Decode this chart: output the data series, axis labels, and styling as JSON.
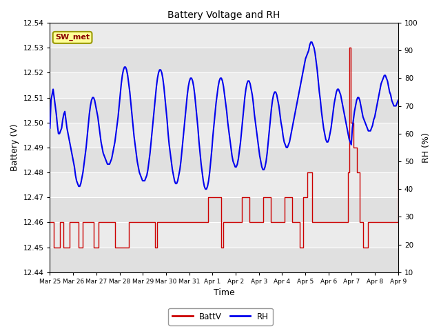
{
  "title": "Battery Voltage and RH",
  "xlabel": "Time",
  "ylabel_left": "Battery (V)",
  "ylabel_right": "RH (%)",
  "station_label": "SW_met",
  "ylim_left": [
    12.44,
    12.54
  ],
  "ylim_right": [
    10,
    100
  ],
  "yticks_left": [
    12.44,
    12.45,
    12.46,
    12.47,
    12.48,
    12.49,
    12.5,
    12.51,
    12.52,
    12.53,
    12.54
  ],
  "yticks_right": [
    10,
    20,
    30,
    40,
    50,
    60,
    70,
    80,
    90,
    100
  ],
  "xtick_labels": [
    "Mar 25",
    "Mar 26",
    "Mar 27",
    "Mar 28",
    "Mar 29",
    "Mar 30",
    "Mar 31",
    "Apr 1",
    "Apr 2",
    "Apr 3",
    "Apr 4",
    "Apr 5",
    "Apr 6",
    "Apr 7",
    "Apr 8",
    "Apr 9"
  ],
  "color_batt": "#cc0000",
  "color_rh": "#0000ee",
  "legend_batt": "BattV",
  "legend_rh": "RH",
  "batt_data": [
    12.46,
    12.46,
    12.46,
    12.45,
    12.45,
    12.45,
    12.45,
    12.45,
    12.46,
    12.46,
    12.46,
    12.45,
    12.45,
    12.45,
    12.45,
    12.45,
    12.46,
    12.46,
    12.46,
    12.46,
    12.46,
    12.46,
    12.46,
    12.45,
    12.45,
    12.45,
    12.46,
    12.46,
    12.46,
    12.46,
    12.46,
    12.46,
    12.46,
    12.46,
    12.46,
    12.45,
    12.45,
    12.45,
    12.45,
    12.46,
    12.46,
    12.46,
    12.46,
    12.46,
    12.46,
    12.46,
    12.46,
    12.46,
    12.46,
    12.46,
    12.46,
    12.46,
    12.45,
    12.45,
    12.45,
    12.45,
    12.45,
    12.45,
    12.45,
    12.45,
    12.45,
    12.45,
    12.45,
    12.46,
    12.46,
    12.46,
    12.46,
    12.46,
    12.46,
    12.46,
    12.46,
    12.46,
    12.46,
    12.46,
    12.46,
    12.46,
    12.46,
    12.46,
    12.46,
    12.46,
    12.46,
    12.46,
    12.46,
    12.46,
    12.45,
    12.45,
    12.46,
    12.46,
    12.46,
    12.46,
    12.46,
    12.46,
    12.46,
    12.46,
    12.46,
    12.46,
    12.46,
    12.46,
    12.46,
    12.46,
    12.46,
    12.46,
    12.46,
    12.46,
    12.46,
    12.46,
    12.46,
    12.46,
    12.46,
    12.46,
    12.46,
    12.46,
    12.46,
    12.46,
    12.46,
    12.46,
    12.46,
    12.46,
    12.46,
    12.46,
    12.46,
    12.46,
    12.46,
    12.46,
    12.46,
    12.46,
    12.46,
    12.47,
    12.47,
    12.47,
    12.47,
    12.47,
    12.47,
    12.47,
    12.47,
    12.47,
    12.47,
    12.45,
    12.45,
    12.46,
    12.46,
    12.46,
    12.46,
    12.46,
    12.46,
    12.46,
    12.46,
    12.46,
    12.46,
    12.46,
    12.46,
    12.46,
    12.46,
    12.46,
    12.47,
    12.47,
    12.47,
    12.47,
    12.47,
    12.47,
    12.46,
    12.46,
    12.46,
    12.46,
    12.46,
    12.46,
    12.46,
    12.46,
    12.46,
    12.46,
    12.46,
    12.47,
    12.47,
    12.47,
    12.47,
    12.47,
    12.47,
    12.46,
    12.46,
    12.46,
    12.46,
    12.46,
    12.46,
    12.46,
    12.46,
    12.46,
    12.46,
    12.46,
    12.47,
    12.47,
    12.47,
    12.47,
    12.47,
    12.47,
    12.46,
    12.46,
    12.46,
    12.46,
    12.46,
    12.46,
    12.45,
    12.45,
    12.45,
    12.47,
    12.47,
    12.47,
    12.48,
    12.48,
    12.48,
    12.48,
    12.46,
    12.46,
    12.46,
    12.46,
    12.46,
    12.46,
    12.46,
    12.46,
    12.46,
    12.46,
    12.46,
    12.46,
    12.46,
    12.46,
    12.46,
    12.46,
    12.46,
    12.46,
    12.46,
    12.46,
    12.46,
    12.46,
    12.46,
    12.46,
    12.46,
    12.46,
    12.46,
    12.46,
    12.46,
    12.48,
    12.53,
    12.5,
    12.5,
    12.49,
    12.49,
    12.49,
    12.48,
    12.48,
    12.46,
    12.46,
    12.46,
    12.45,
    12.45,
    12.45,
    12.45,
    12.46,
    12.46,
    12.46,
    12.46,
    12.46,
    12.46,
    12.46,
    12.46,
    12.46,
    12.46,
    12.46,
    12.46,
    12.46,
    12.46,
    12.46,
    12.46,
    12.46,
    12.46,
    12.46,
    12.46,
    12.46,
    12.46,
    12.46,
    12.46,
    12.48
  ],
  "rh_data": [
    62,
    72,
    74,
    76,
    73,
    70,
    67,
    63,
    60,
    60,
    61,
    62,
    65,
    67,
    68,
    65,
    62,
    60,
    58,
    56,
    54,
    52,
    50,
    48,
    45,
    43,
    42,
    41,
    41,
    42,
    44,
    46,
    49,
    52,
    55,
    59,
    63,
    67,
    70,
    72,
    73,
    73,
    72,
    70,
    68,
    66,
    63,
    60,
    57,
    55,
    53,
    52,
    51,
    50,
    49,
    49,
    49,
    50,
    51,
    53,
    55,
    57,
    60,
    63,
    66,
    70,
    74,
    78,
    81,
    83,
    84,
    84,
    83,
    81,
    78,
    75,
    71,
    67,
    63,
    59,
    56,
    53,
    50,
    48,
    46,
    45,
    44,
    43,
    43,
    43,
    44,
    45,
    47,
    50,
    53,
    57,
    61,
    65,
    69,
    73,
    77,
    80,
    82,
    83,
    83,
    82,
    80,
    77,
    73,
    69,
    65,
    60,
    56,
    53,
    50,
    47,
    45,
    43,
    42,
    42,
    43,
    45,
    47,
    50,
    54,
    58,
    62,
    66,
    70,
    74,
    77,
    79,
    80,
    80,
    79,
    77,
    74,
    70,
    66,
    62,
    57,
    53,
    49,
    46,
    43,
    41,
    40,
    40,
    41,
    43,
    46,
    50,
    54,
    59,
    63,
    67,
    71,
    74,
    77,
    79,
    80,
    80,
    79,
    77,
    74,
    71,
    68,
    64,
    61,
    58,
    55,
    52,
    50,
    49,
    48,
    48,
    49,
    51,
    54,
    57,
    61,
    65,
    69,
    73,
    76,
    78,
    79,
    79,
    78,
    76,
    74,
    71,
    67,
    64,
    61,
    58,
    55,
    52,
    50,
    48,
    47,
    47,
    48,
    50,
    53,
    57,
    61,
    65,
    69,
    72,
    74,
    75,
    75,
    74,
    72,
    70,
    67,
    64,
    62,
    59,
    57,
    56,
    55,
    55,
    56,
    57,
    59,
    61,
    63,
    65,
    67,
    69,
    71,
    73,
    75,
    77,
    79,
    81,
    83,
    85,
    87,
    88,
    89,
    90,
    92,
    93,
    93,
    92,
    91,
    89,
    86,
    83,
    79,
    75,
    72,
    68,
    65,
    62,
    60,
    58,
    57,
    57,
    58,
    60,
    62,
    65,
    68,
    71,
    73,
    75,
    76,
    76,
    75,
    74,
    72,
    70,
    68,
    66,
    64,
    62,
    60,
    58,
    57,
    56,
    62,
    65,
    68,
    70,
    72,
    73,
    73,
    72,
    70,
    68,
    66,
    65,
    64,
    63,
    62,
    61,
    61,
    61,
    62,
    63,
    65,
    66,
    68,
    70,
    72,
    74,
    76,
    78,
    79,
    80,
    81,
    81,
    80,
    79,
    77,
    75,
    74,
    72,
    71,
    70,
    70,
    70,
    71,
    72
  ]
}
